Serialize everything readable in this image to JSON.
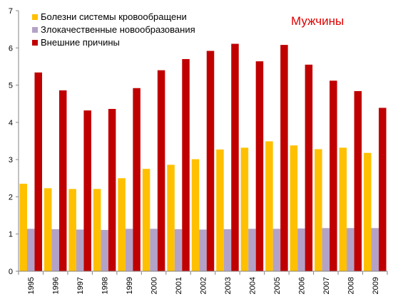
{
  "chart_data": {
    "type": "bar",
    "title": "Мужчины",
    "title_color": "#e00000",
    "xlabel": "",
    "ylabel": "",
    "ylim": [
      0,
      7
    ],
    "yticks": [
      "0",
      "1",
      "2",
      "3",
      "4",
      "5",
      "6",
      "7"
    ],
    "grid": false,
    "legend_position": "top-left",
    "categories": [
      "1995",
      "1996",
      "1997",
      "1998",
      "1999",
      "2000",
      "2001",
      "2002",
      "2003",
      "2004",
      "2005",
      "2006",
      "2007",
      "2008",
      "2009"
    ],
    "series": [
      {
        "name": "Болезни системы кровообращени",
        "color": "#ffc000",
        "values": [
          2.35,
          2.23,
          2.21,
          2.21,
          2.5,
          2.75,
          2.86,
          3.01,
          3.27,
          3.32,
          3.49,
          3.38,
          3.28,
          3.32,
          3.18
        ]
      },
      {
        "name": "Злокачественные новообразования",
        "color": "#b3a2c7",
        "values": [
          1.14,
          1.13,
          1.12,
          1.11,
          1.14,
          1.14,
          1.13,
          1.12,
          1.13,
          1.14,
          1.14,
          1.15,
          1.16,
          1.16,
          1.16
        ]
      },
      {
        "name": "Внешние причины",
        "color": "#c00000",
        "values": [
          5.34,
          4.86,
          4.32,
          4.36,
          4.92,
          5.4,
          5.7,
          5.92,
          6.11,
          5.64,
          6.08,
          5.55,
          5.12,
          4.84,
          4.39
        ]
      }
    ]
  }
}
